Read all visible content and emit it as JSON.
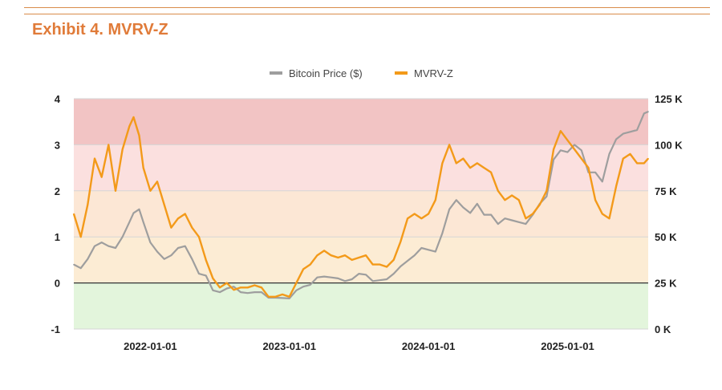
{
  "page": {
    "title": "Exhibit 4. MVRV-Z"
  },
  "colors": {
    "accent": "#e07b39",
    "price_line": "#9e9e9e",
    "mvrv_line": "#f39a1a",
    "band_red": "#f2c4c4",
    "band_pink": "#fbe0df",
    "band_peach": "#fce7d5",
    "band_yellow": "#fcecd4",
    "band_green": "#e3f5dc"
  },
  "chart_data": {
    "type": "line",
    "title": "Exhibit 4. MVRV-Z",
    "legend": {
      "position": "top-center",
      "entries": [
        "Bitcoin Price ($)",
        "MVRV-Z"
      ]
    },
    "x_ticks": [
      "2022-01-01",
      "2023-01-01",
      "2024-01-01",
      "2025-01-01"
    ],
    "y_left": {
      "ticks": [
        "4",
        "3",
        "2",
        "1",
        "0",
        "-1"
      ],
      "range": [
        -1,
        4
      ]
    },
    "y_right": {
      "ticks": [
        "125 K",
        "100 K",
        "75 K",
        "50 K",
        "25 K",
        "0 K"
      ],
      "range": [
        0,
        125000
      ]
    },
    "x_range": [
      2021.45,
      2025.58
    ],
    "bands": [
      {
        "from": 3,
        "to": 4,
        "color": "#f2c4c4"
      },
      {
        "from": 2,
        "to": 3,
        "color": "#fbe0df"
      },
      {
        "from": 1,
        "to": 2,
        "color": "#fce7d5"
      },
      {
        "from": 0,
        "to": 1,
        "color": "#fcecd4"
      },
      {
        "from": -1,
        "to": 0,
        "color": "#e3f5dc"
      }
    ],
    "series": [
      {
        "name": "MVRV-Z",
        "axis": "left",
        "x": [
          2021.45,
          2021.5,
          2021.55,
          2021.6,
          2021.65,
          2021.7,
          2021.75,
          2021.8,
          2021.85,
          2021.88,
          2021.92,
          2021.95,
          2022.0,
          2022.05,
          2022.1,
          2022.15,
          2022.2,
          2022.25,
          2022.3,
          2022.35,
          2022.4,
          2022.45,
          2022.5,
          2022.55,
          2022.6,
          2022.65,
          2022.7,
          2022.75,
          2022.8,
          2022.85,
          2022.9,
          2022.95,
          2023.0,
          2023.05,
          2023.1,
          2023.15,
          2023.2,
          2023.25,
          2023.3,
          2023.35,
          2023.4,
          2023.45,
          2023.5,
          2023.55,
          2023.6,
          2023.65,
          2023.7,
          2023.75,
          2023.8,
          2023.85,
          2023.9,
          2023.95,
          2024.0,
          2024.05,
          2024.1,
          2024.15,
          2024.2,
          2024.25,
          2024.3,
          2024.35,
          2024.4,
          2024.45,
          2024.5,
          2024.55,
          2024.6,
          2024.65,
          2024.7,
          2024.75,
          2024.8,
          2024.85,
          2024.9,
          2024.95,
          2025.0,
          2025.05,
          2025.1,
          2025.15,
          2025.2,
          2025.25,
          2025.3,
          2025.35,
          2025.4,
          2025.45,
          2025.5,
          2025.55,
          2025.58
        ],
        "values": [
          1.5,
          1.0,
          1.7,
          2.7,
          2.3,
          3.0,
          2.0,
          2.9,
          3.4,
          3.6,
          3.2,
          2.5,
          2.0,
          2.2,
          1.7,
          1.2,
          1.4,
          1.5,
          1.2,
          1.0,
          0.5,
          0.1,
          -0.1,
          0.0,
          -0.15,
          -0.1,
          -0.1,
          -0.05,
          -0.1,
          -0.3,
          -0.3,
          -0.25,
          -0.3,
          0.0,
          0.3,
          0.4,
          0.6,
          0.7,
          0.6,
          0.55,
          0.6,
          0.5,
          0.55,
          0.6,
          0.4,
          0.4,
          0.35,
          0.5,
          0.9,
          1.4,
          1.5,
          1.4,
          1.5,
          1.8,
          2.6,
          3.0,
          2.6,
          2.7,
          2.5,
          2.6,
          2.5,
          2.4,
          2.0,
          1.8,
          1.9,
          1.8,
          1.4,
          1.5,
          1.7,
          2.0,
          2.9,
          3.3,
          3.1,
          2.9,
          2.7,
          2.5,
          1.8,
          1.5,
          1.4,
          2.1,
          2.7,
          2.8,
          2.6,
          2.6,
          2.7
        ]
      },
      {
        "name": "Bitcoin Price ($)",
        "axis": "right",
        "x": [
          2021.45,
          2021.5,
          2021.55,
          2021.6,
          2021.65,
          2021.7,
          2021.75,
          2021.8,
          2021.85,
          2021.88,
          2021.92,
          2021.95,
          2022.0,
          2022.05,
          2022.1,
          2022.15,
          2022.2,
          2022.25,
          2022.3,
          2022.35,
          2022.4,
          2022.45,
          2022.5,
          2022.55,
          2022.6,
          2022.65,
          2022.7,
          2022.75,
          2022.8,
          2022.85,
          2022.9,
          2022.95,
          2023.0,
          2023.05,
          2023.1,
          2023.15,
          2023.2,
          2023.25,
          2023.3,
          2023.35,
          2023.4,
          2023.45,
          2023.5,
          2023.55,
          2023.6,
          2023.65,
          2023.7,
          2023.75,
          2023.8,
          2023.85,
          2023.9,
          2023.95,
          2024.0,
          2024.05,
          2024.1,
          2024.15,
          2024.2,
          2024.25,
          2024.3,
          2024.35,
          2024.4,
          2024.45,
          2024.5,
          2024.55,
          2024.6,
          2024.65,
          2024.7,
          2024.75,
          2024.8,
          2024.85,
          2024.9,
          2024.95,
          2025.0,
          2025.05,
          2025.1,
          2025.15,
          2025.2,
          2025.25,
          2025.3,
          2025.35,
          2025.4,
          2025.45,
          2025.5,
          2025.55,
          2025.58
        ],
        "values": [
          35000,
          33000,
          38000,
          45000,
          47000,
          45000,
          44000,
          50000,
          58000,
          63000,
          65000,
          58000,
          47000,
          42000,
          38000,
          40000,
          44000,
          45000,
          38000,
          30000,
          29000,
          21000,
          20000,
          22000,
          23000,
          20000,
          19500,
          20000,
          20000,
          17000,
          17000,
          16800,
          16600,
          21000,
          23000,
          24000,
          28000,
          28500,
          28000,
          27500,
          26000,
          27000,
          30000,
          29500,
          26000,
          26500,
          27000,
          30000,
          34000,
          37000,
          40000,
          44000,
          43000,
          42000,
          52000,
          65000,
          70000,
          66000,
          63000,
          68000,
          62000,
          62000,
          57000,
          60000,
          59000,
          58000,
          57000,
          62000,
          68000,
          72000,
          92000,
          97000,
          96000,
          100000,
          97000,
          85000,
          85000,
          80000,
          95000,
          103000,
          106000,
          107000,
          108000,
          117000,
          118000
        ]
      }
    ]
  }
}
